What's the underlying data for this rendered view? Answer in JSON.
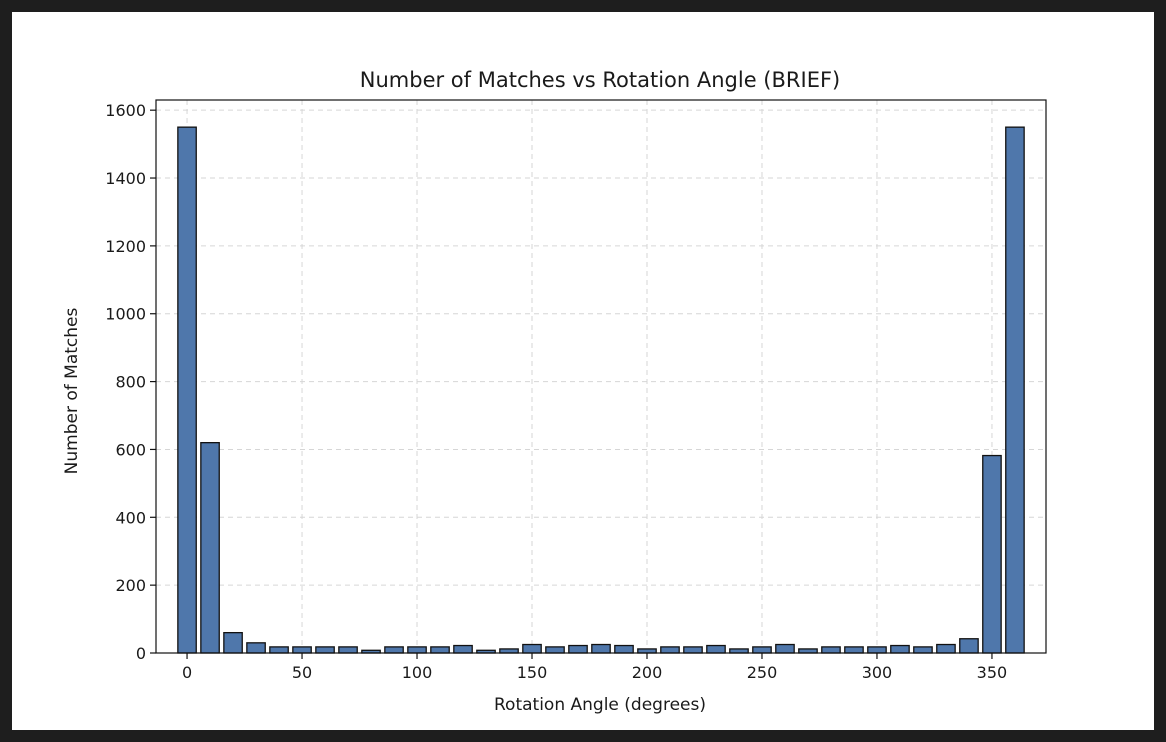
{
  "chart_data": {
    "type": "bar",
    "title": "Number of Matches vs Rotation Angle (BRIEF)",
    "xlabel": "Rotation Angle (degrees)",
    "ylabel": "Number of Matches",
    "x": [
      0,
      10,
      20,
      30,
      40,
      50,
      60,
      70,
      80,
      90,
      100,
      110,
      120,
      130,
      140,
      150,
      160,
      170,
      180,
      190,
      200,
      210,
      220,
      230,
      240,
      250,
      260,
      270,
      280,
      290,
      300,
      310,
      320,
      330,
      340,
      350,
      360
    ],
    "values": [
      1550,
      620,
      60,
      30,
      18,
      18,
      18,
      18,
      8,
      18,
      18,
      18,
      22,
      8,
      12,
      25,
      18,
      22,
      25,
      22,
      12,
      18,
      18,
      22,
      12,
      18,
      25,
      12,
      18,
      18,
      18,
      22,
      18,
      25,
      42,
      582,
      1550
    ],
    "xlim": [
      -13.5,
      373.5
    ],
    "ylim": [
      0,
      1630
    ],
    "xticks": [
      0,
      50,
      100,
      150,
      200,
      250,
      300,
      350
    ],
    "yticks": [
      0,
      200,
      400,
      600,
      800,
      1000,
      1200,
      1400,
      1600
    ],
    "bar_width": 8,
    "grid": true,
    "bar_color": "#4f77ab",
    "edge_color": "#111111"
  }
}
